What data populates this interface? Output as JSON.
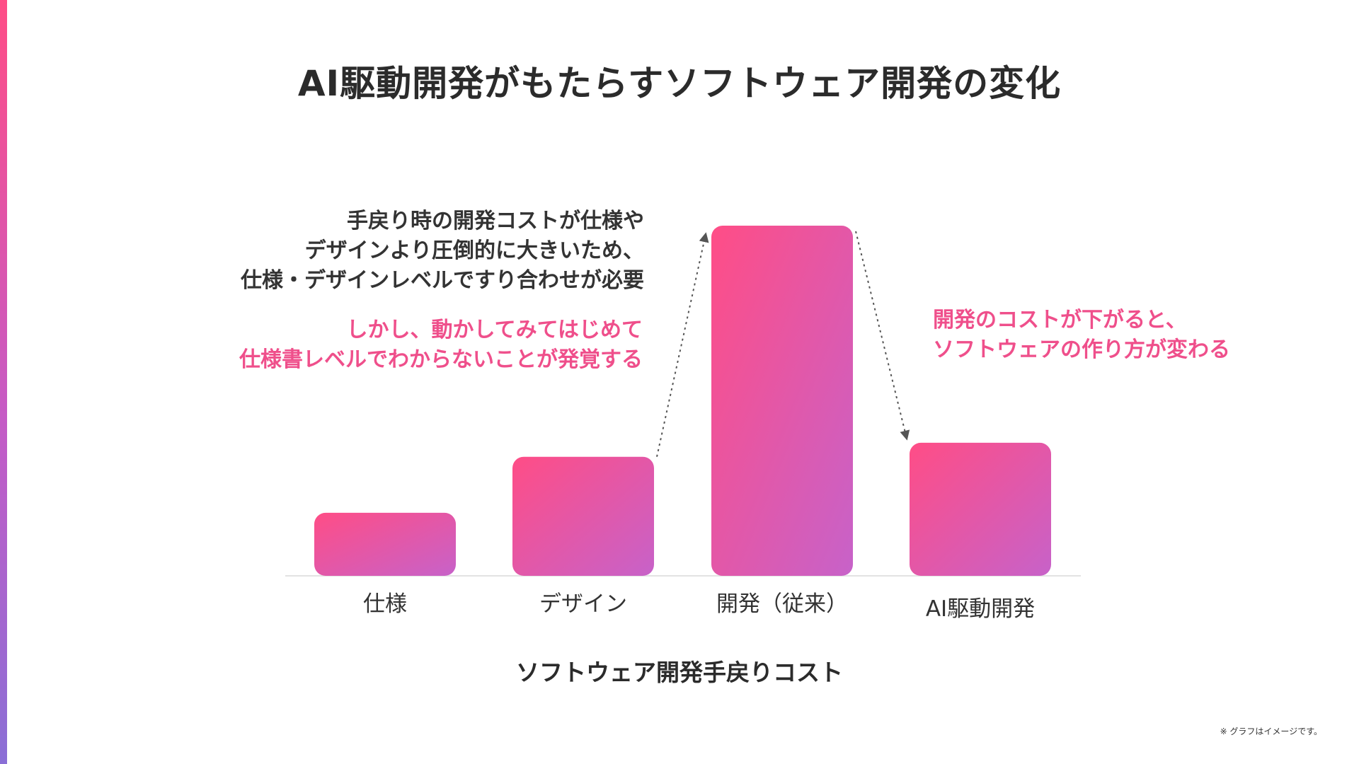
{
  "title": "AI駆動開発がもたらすソフトウェア開発の変化",
  "notes": {
    "dark": [
      "手戻り時の開発コストが仕様や",
      "デザインより圧倒的に大きいため、",
      "仕様・デザインレベルですり合わせが必要"
    ],
    "pink_left": [
      "しかし、動かしてみてはじめて",
      "仕様書レベルでわからないことが発覚する"
    ],
    "pink_right": [
      "開発のコストが下がると、",
      "ソフトウェアの作り方が変わる"
    ]
  },
  "footnote": "※ グラフはイメージです。",
  "colors": {
    "accent_pink": "#ef4f8b",
    "bar_gradient_start": "#ff4d86",
    "bar_gradient_end": "#c762c9",
    "text": "#2b2b2b",
    "arrow": "#555555",
    "baseline": "#e3e3e3"
  },
  "chart_data": {
    "type": "bar",
    "categories": [
      "仕様",
      "デザイン",
      "開発（従来）",
      "AI駆動開発"
    ],
    "values": [
      18,
      34,
      100,
      38
    ],
    "xlabel": "ソフトウェア開発手戻りコスト",
    "ylabel": "",
    "ylim": [
      0,
      100
    ],
    "grid": false,
    "legend": "none",
    "annotations": [
      {
        "type": "arrow",
        "from": "デザイン",
        "to": "開発（従来）",
        "style": "dotted"
      },
      {
        "type": "arrow",
        "from": "開発（従来）",
        "to": "AI駆動開発",
        "style": "dotted"
      }
    ]
  }
}
